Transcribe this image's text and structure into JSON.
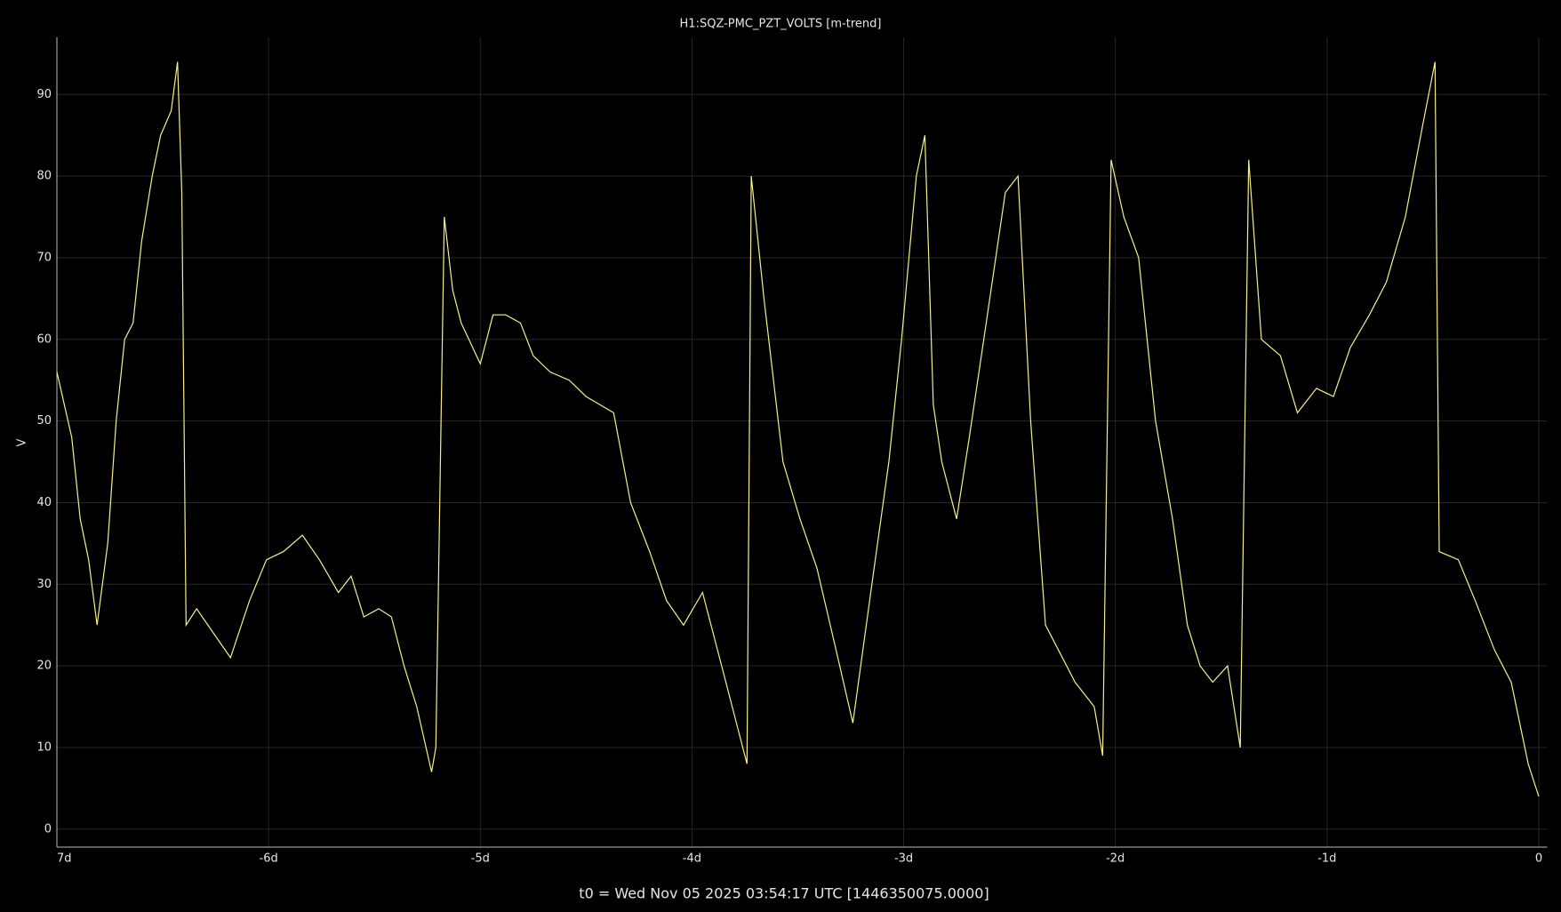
{
  "chart_data": {
    "type": "line",
    "title": "H1:SQZ-PMC_PZT_VOLTS [m-trend]",
    "y_label": "V",
    "x_label": "t0 = Wed Nov 05 2025 03:54:17 UTC [1446350075.0000]",
    "xlim": [
      -7,
      0.04
    ],
    "ylim": [
      -2.2,
      97
    ],
    "xticks": [
      {
        "value": -7,
        "label": "7d"
      },
      {
        "value": -6,
        "label": "-6d"
      },
      {
        "value": -5,
        "label": "-5d"
      },
      {
        "value": -4,
        "label": "-4d"
      },
      {
        "value": -3,
        "label": "-3d"
      },
      {
        "value": -2,
        "label": "-2d"
      },
      {
        "value": -1,
        "label": "-1d"
      },
      0
    ],
    "yticks": [
      0,
      10,
      20,
      30,
      40,
      50,
      60,
      70,
      80,
      90
    ],
    "grid": true,
    "series": [
      {
        "name": "H1:SQZ-PMC_PZT_VOLTS",
        "color": "#f7f08a",
        "x": [
          -7.0,
          -6.93,
          -6.89,
          -6.85,
          -6.81,
          -6.76,
          -6.72,
          -6.68,
          -6.64,
          -6.6,
          -6.55,
          -6.51,
          -6.46,
          -6.43,
          -6.41,
          -6.39,
          -6.34,
          -6.26,
          -6.18,
          -6.09,
          -6.01,
          -5.93,
          -5.84,
          -5.76,
          -5.67,
          -5.61,
          -5.55,
          -5.48,
          -5.42,
          -5.36,
          -5.3,
          -5.23,
          -5.21,
          -5.17,
          -5.13,
          -5.09,
          -5.0,
          -4.94,
          -4.88,
          -4.81,
          -4.75,
          -4.67,
          -4.58,
          -4.5,
          -4.37,
          -4.29,
          -4.2,
          -4.12,
          -4.04,
          -3.95,
          -3.87,
          -3.78,
          -3.74,
          -3.72,
          -3.66,
          -3.57,
          -3.49,
          -3.41,
          -3.32,
          -3.24,
          -3.15,
          -3.07,
          -3.01,
          -2.94,
          -2.9,
          -2.86,
          -2.82,
          -2.75,
          -2.69,
          -2.61,
          -2.52,
          -2.46,
          -2.4,
          -2.33,
          -2.27,
          -2.19,
          -2.1,
          -2.06,
          -2.02,
          -1.96,
          -1.89,
          -1.81,
          -1.73,
          -1.66,
          -1.6,
          -1.54,
          -1.47,
          -1.41,
          -1.37,
          -1.31,
          -1.22,
          -1.14,
          -1.05,
          -0.97,
          -0.89,
          -0.8,
          -0.72,
          -0.63,
          -0.55,
          -0.49,
          -0.47,
          -0.38,
          -0.3,
          -0.21,
          -0.13,
          -0.05,
          0.0
        ],
        "values": [
          56,
          48,
          38,
          33,
          25,
          35,
          50,
          60,
          62,
          72,
          80,
          85,
          88,
          94,
          78,
          25,
          27,
          24,
          21,
          28,
          33,
          34,
          36,
          33,
          29,
          31,
          26,
          27,
          26,
          20,
          15,
          7,
          10,
          75,
          66,
          62,
          57,
          63,
          63,
          62,
          58,
          56,
          55,
          53,
          51,
          40,
          34,
          28,
          25,
          29,
          21,
          12,
          8,
          80,
          65,
          45,
          38,
          32,
          22,
          13,
          30,
          45,
          60,
          80,
          85,
          52,
          45,
          38,
          48,
          62,
          78,
          80,
          50,
          25,
          22,
          18,
          15,
          9,
          82,
          75,
          70,
          50,
          38,
          25,
          20,
          18,
          20,
          10,
          82,
          60,
          58,
          51,
          54,
          53,
          59,
          63,
          67,
          75,
          86,
          94,
          34,
          33,
          28,
          22,
          18,
          8,
          4
        ]
      }
    ]
  }
}
